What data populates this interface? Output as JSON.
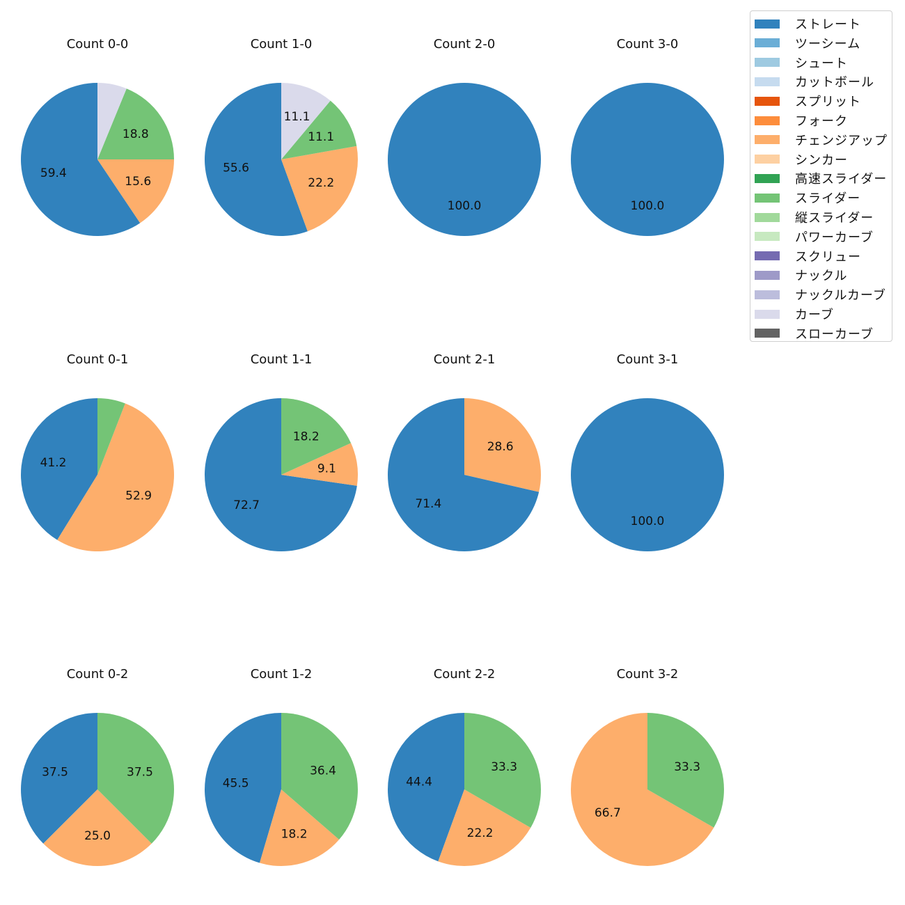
{
  "chart_data": {
    "type": "pie",
    "legend": {
      "placement": "top-right",
      "entries": [
        {
          "label": "ストレート",
          "color": "#3182bd"
        },
        {
          "label": "ツーシーム",
          "color": "#6baed6"
        },
        {
          "label": "シュート",
          "color": "#9ecae1"
        },
        {
          "label": "カットボール",
          "color": "#c6dbef"
        },
        {
          "label": "スプリット",
          "color": "#e6550d"
        },
        {
          "label": "フォーク",
          "color": "#fd8d3c"
        },
        {
          "label": "チェンジアップ",
          "color": "#fdae6b"
        },
        {
          "label": "シンカー",
          "color": "#fdd0a2"
        },
        {
          "label": "高速スライダー",
          "color": "#31a354"
        },
        {
          "label": "スライダー",
          "color": "#74c476"
        },
        {
          "label": "縦スライダー",
          "color": "#a1d99b"
        },
        {
          "label": "パワーカーブ",
          "color": "#c7e9c0"
        },
        {
          "label": "スクリュー",
          "color": "#756bb1"
        },
        {
          "label": "ナックル",
          "color": "#9e9ac8"
        },
        {
          "label": "ナックルカーブ",
          "color": "#bcbddc"
        },
        {
          "label": "カーブ",
          "color": "#dadaeb"
        },
        {
          "label": "スローカーブ",
          "color": "#636363"
        }
      ]
    },
    "charts": [
      {
        "title": "Count 0-0",
        "slices": [
          {
            "pitch": "ストレート",
            "value": 59.4,
            "label": "59.4"
          },
          {
            "pitch": "チェンジアップ",
            "value": 15.6,
            "label": "15.6"
          },
          {
            "pitch": "スライダー",
            "value": 18.8,
            "label": "18.8"
          },
          {
            "pitch": "カーブ",
            "value": 6.2,
            "label": ""
          }
        ]
      },
      {
        "title": "Count 1-0",
        "slices": [
          {
            "pitch": "ストレート",
            "value": 55.6,
            "label": "55.6"
          },
          {
            "pitch": "チェンジアップ",
            "value": 22.2,
            "label": "22.2"
          },
          {
            "pitch": "スライダー",
            "value": 11.1,
            "label": "11.1"
          },
          {
            "pitch": "カーブ",
            "value": 11.1,
            "label": "11.1"
          }
        ]
      },
      {
        "title": "Count 2-0",
        "slices": [
          {
            "pitch": "ストレート",
            "value": 100.0,
            "label": "100.0"
          }
        ]
      },
      {
        "title": "Count 3-0",
        "slices": [
          {
            "pitch": "ストレート",
            "value": 100.0,
            "label": "100.0"
          }
        ]
      },
      {
        "title": "Count 0-1",
        "slices": [
          {
            "pitch": "ストレート",
            "value": 41.2,
            "label": "41.2"
          },
          {
            "pitch": "チェンジアップ",
            "value": 52.9,
            "label": "52.9"
          },
          {
            "pitch": "スライダー",
            "value": 5.9,
            "label": ""
          }
        ]
      },
      {
        "title": "Count 1-1",
        "slices": [
          {
            "pitch": "ストレート",
            "value": 72.7,
            "label": "72.7"
          },
          {
            "pitch": "チェンジアップ",
            "value": 9.1,
            "label": "9.1"
          },
          {
            "pitch": "スライダー",
            "value": 18.2,
            "label": "18.2"
          }
        ]
      },
      {
        "title": "Count 2-1",
        "slices": [
          {
            "pitch": "ストレート",
            "value": 71.4,
            "label": "71.4"
          },
          {
            "pitch": "チェンジアップ",
            "value": 28.6,
            "label": "28.6"
          }
        ]
      },
      {
        "title": "Count 3-1",
        "slices": [
          {
            "pitch": "ストレート",
            "value": 100.0,
            "label": "100.0"
          }
        ]
      },
      {
        "title": "Count 0-2",
        "slices": [
          {
            "pitch": "ストレート",
            "value": 37.5,
            "label": "37.5"
          },
          {
            "pitch": "チェンジアップ",
            "value": 25.0,
            "label": "25.0"
          },
          {
            "pitch": "スライダー",
            "value": 37.5,
            "label": "37.5"
          }
        ]
      },
      {
        "title": "Count 1-2",
        "slices": [
          {
            "pitch": "ストレート",
            "value": 45.5,
            "label": "45.5"
          },
          {
            "pitch": "チェンジアップ",
            "value": 18.2,
            "label": "18.2"
          },
          {
            "pitch": "スライダー",
            "value": 36.4,
            "label": "36.4"
          }
        ]
      },
      {
        "title": "Count 2-2",
        "slices": [
          {
            "pitch": "ストレート",
            "value": 44.4,
            "label": "44.4"
          },
          {
            "pitch": "チェンジアップ",
            "value": 22.2,
            "label": "22.2"
          },
          {
            "pitch": "スライダー",
            "value": 33.3,
            "label": "33.3"
          }
        ]
      },
      {
        "title": "Count 3-2",
        "slices": [
          {
            "pitch": "チェンジアップ",
            "value": 66.7,
            "label": "66.7"
          },
          {
            "pitch": "スライダー",
            "value": 33.3,
            "label": "33.3"
          }
        ]
      }
    ]
  }
}
